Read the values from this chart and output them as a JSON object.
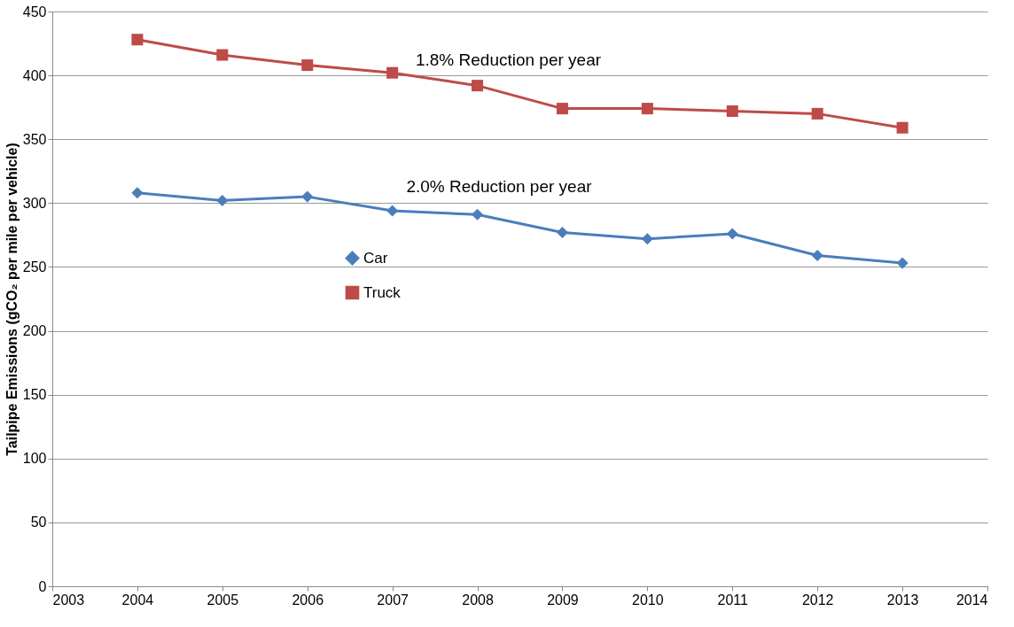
{
  "chart_data": {
    "type": "line",
    "ylabel": "Tailpipe Emissions (gCO₂ per mile per vehicle)",
    "x": [
      2004,
      2005,
      2006,
      2007,
      2008,
      2009,
      2010,
      2011,
      2012,
      2013
    ],
    "series": [
      {
        "name": "Car",
        "color": "#4a7ebb",
        "marker": "diamond",
        "values": [
          308,
          302,
          305,
          294,
          291,
          277,
          272,
          276,
          259,
          253
        ]
      },
      {
        "name": "Truck",
        "color": "#be4b48",
        "marker": "square",
        "values": [
          428,
          416,
          408,
          402,
          392,
          374,
          374,
          372,
          370,
          359
        ]
      }
    ],
    "annotations": [
      "1.8% Reduction per year",
      "2.0% Reduction per year"
    ],
    "xlim": [
      2003,
      2014
    ],
    "xticks": [
      2003,
      2004,
      2005,
      2006,
      2007,
      2008,
      2009,
      2010,
      2011,
      2012,
      2013,
      2014
    ],
    "ylim": [
      0,
      450
    ],
    "yticks": [
      0,
      50,
      100,
      150,
      200,
      250,
      300,
      350,
      400,
      450
    ],
    "grid": "y",
    "legend": "left",
    "line_style": "solid"
  }
}
